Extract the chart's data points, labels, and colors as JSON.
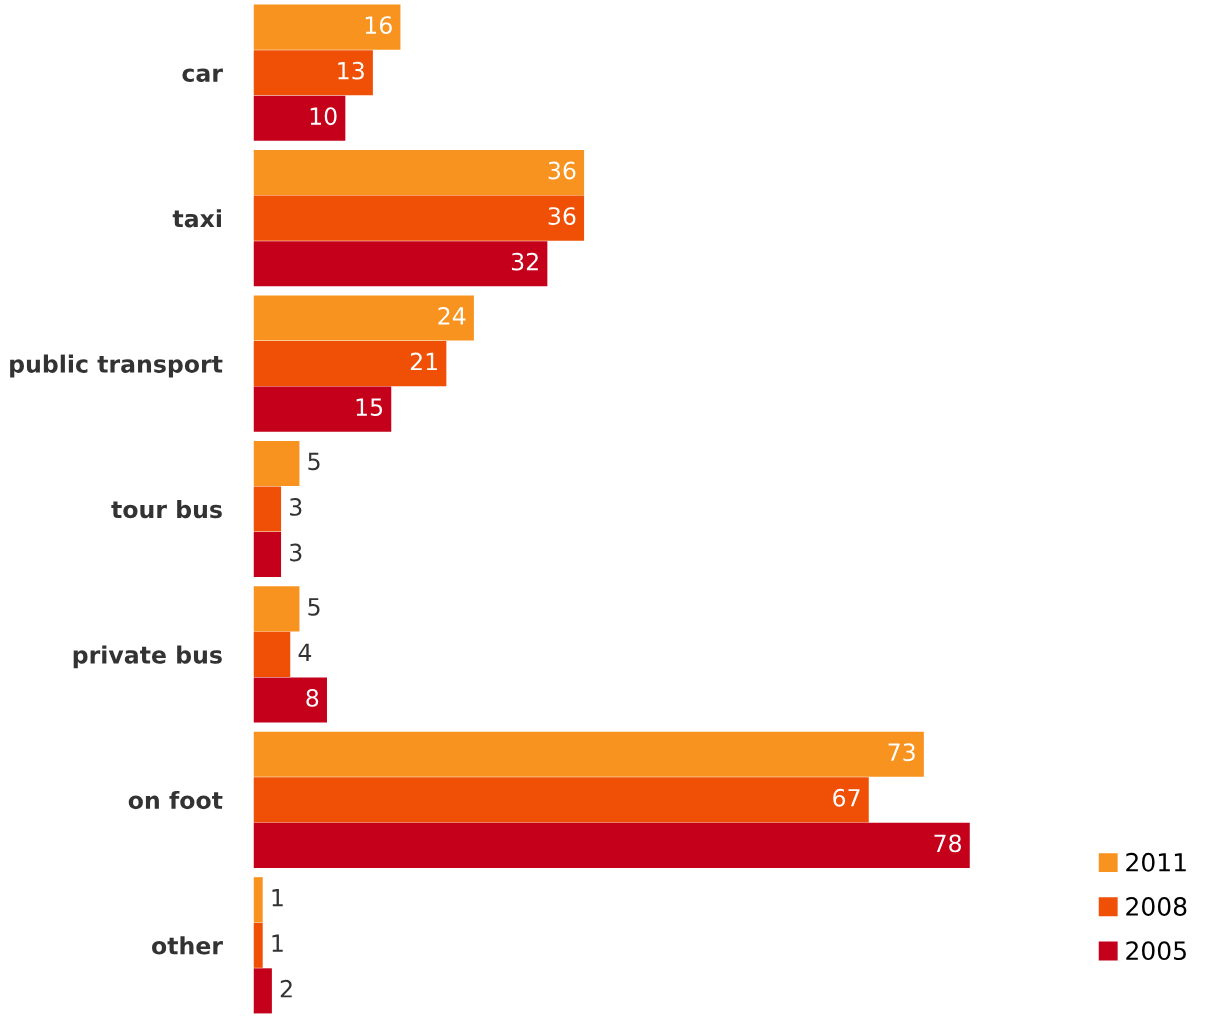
{
  "chart_data": {
    "type": "bar",
    "orientation": "horizontal",
    "categories": [
      "car",
      "taxi",
      "public transport",
      "tour bus",
      "private bus",
      "on foot",
      "other"
    ],
    "series": [
      {
        "name": "2011",
        "color": "#f7931e",
        "values": [
          16,
          36,
          24,
          5,
          5,
          73,
          1
        ]
      },
      {
        "name": "2008",
        "color": "#f05006",
        "values": [
          13,
          36,
          21,
          3,
          4,
          67,
          1
        ]
      },
      {
        "name": "2005",
        "color": "#c4001a",
        "values": [
          10,
          32,
          15,
          3,
          8,
          78,
          2
        ]
      }
    ],
    "data_labels": true,
    "legend": "bottom right",
    "grid": false,
    "tick_labels": "y"
  }
}
